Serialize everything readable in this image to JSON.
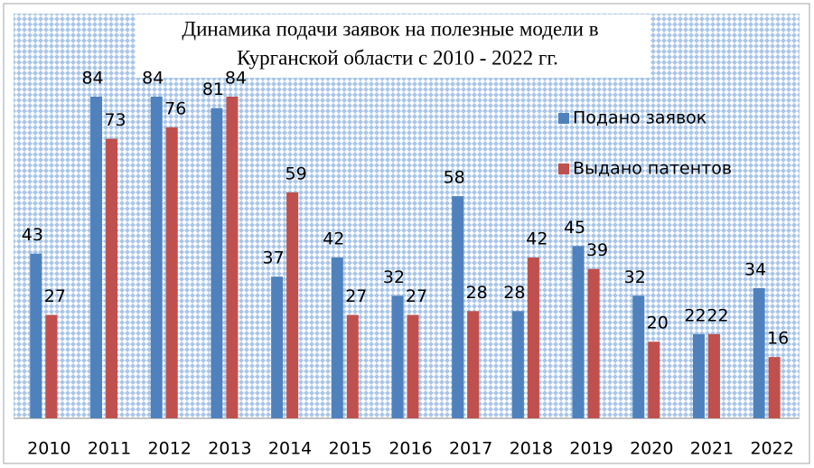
{
  "chart_data": {
    "type": "bar",
    "title": [
      "Динамика подачи заявок на полезные модели в",
      "Курганской области с 2010 - 2022 гг."
    ],
    "categories": [
      "2010",
      "2011",
      "2012",
      "2013",
      "2014",
      "2015",
      "2016",
      "2017",
      "2018",
      "2019",
      "2020",
      "2021",
      "2022"
    ],
    "series": [
      {
        "name": "Подано заявок",
        "color": "#4f81bd",
        "values": [
          43,
          84,
          84,
          81,
          37,
          42,
          32,
          58,
          28,
          45,
          32,
          22,
          34
        ]
      },
      {
        "name": "Выдано патентов",
        "color": "#c0504d",
        "values": [
          27,
          73,
          76,
          84,
          59,
          27,
          27,
          28,
          42,
          39,
          20,
          22,
          16
        ]
      }
    ],
    "ylim": [
      0,
      88
    ],
    "legend": "right"
  }
}
